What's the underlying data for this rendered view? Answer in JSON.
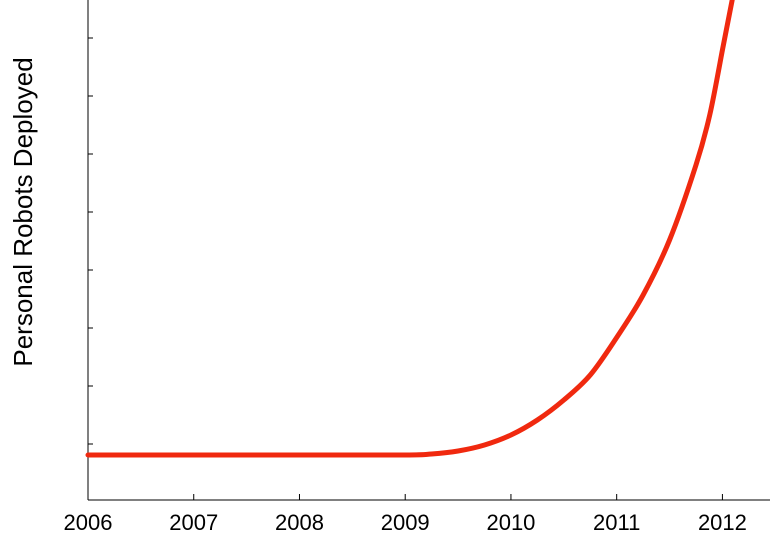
{
  "chart_data": {
    "type": "line",
    "title": "",
    "xlabel": "",
    "ylabel": "Personal Robots Deployed",
    "xlim": [
      2006,
      2012.45
    ],
    "ylim": [
      0,
      1
    ],
    "x_ticks": [
      "2006",
      "2007",
      "2008",
      "2009",
      "2010",
      "2011",
      "2012"
    ],
    "y_tick_labels_shown": false,
    "grid": false,
    "legend": "none",
    "series": [
      {
        "color": "#f0290f",
        "x": [
          2006.0,
          2007.0,
          2008.0,
          2009.0,
          2009.25,
          2009.5,
          2009.75,
          2010.0,
          2010.25,
          2010.5,
          2010.75,
          2011.0,
          2011.25,
          2011.5,
          2011.75,
          2011.88,
          2012.0
        ],
        "y": [
          0.09,
          0.09,
          0.09,
          0.09,
          0.092,
          0.098,
          0.11,
          0.13,
          0.16,
          0.2,
          0.25,
          0.325,
          0.41,
          0.52,
          0.67,
          0.77,
          0.9
        ]
      }
    ]
  }
}
